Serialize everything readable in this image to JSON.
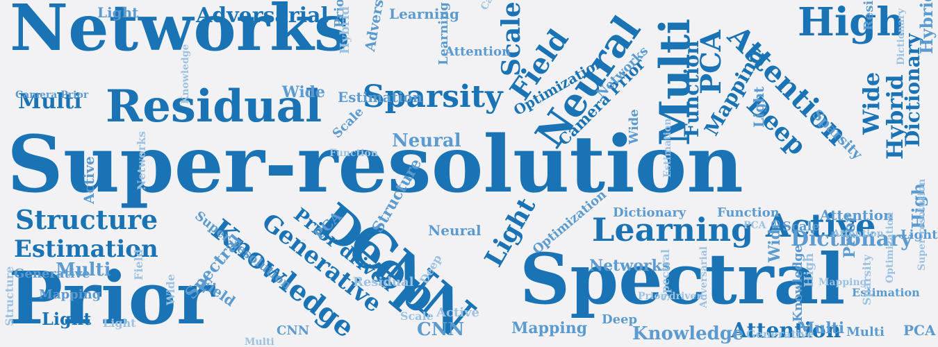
{
  "colors": {
    "background": "#f2f2f5",
    "primary": "#1a73b5",
    "secondary": "#5b9bd0",
    "pale": "#9cc2e2"
  },
  "words": [
    {
      "text": "Networks",
      "tone": "primary"
    },
    {
      "text": "Super-resolution",
      "tone": "primary"
    },
    {
      "text": "Spectral",
      "tone": "primary"
    },
    {
      "text": "Prior",
      "tone": "primary"
    },
    {
      "text": "Residual",
      "tone": "primary"
    },
    {
      "text": "High",
      "tone": "primary"
    },
    {
      "text": "CNN",
      "tone": "primary"
    },
    {
      "text": "Deep",
      "tone": "primary"
    },
    {
      "text": "Neural",
      "tone": "primary"
    },
    {
      "text": "Multi",
      "tone": "primary"
    },
    {
      "text": "Sparsity",
      "tone": "primary"
    },
    {
      "text": "Learning",
      "tone": "primary"
    },
    {
      "text": "Active",
      "tone": "primary"
    },
    {
      "text": "Knowledge",
      "tone": "primary"
    },
    {
      "text": "Generative",
      "tone": "primary"
    },
    {
      "text": "Structure",
      "tone": "primary"
    },
    {
      "text": "Estimation",
      "tone": "primary"
    },
    {
      "text": "Adversarial",
      "tone": "primary"
    },
    {
      "text": "Attention",
      "tone": "primary"
    },
    {
      "text": "Field",
      "tone": "primary"
    },
    {
      "text": "PCA",
      "tone": "primary"
    },
    {
      "text": "Scale",
      "tone": "primary"
    },
    {
      "text": "Light",
      "tone": "primary"
    },
    {
      "text": "Dictionary",
      "tone": "primary"
    },
    {
      "text": "Wide",
      "tone": "primary"
    },
    {
      "text": "Multi",
      "tone": "primary"
    },
    {
      "text": "Hybrid",
      "tone": "primary"
    },
    {
      "text": "Attention",
      "tone": "primary"
    },
    {
      "text": "Function",
      "tone": "primary"
    },
    {
      "text": "Mapping",
      "tone": "primary"
    },
    {
      "text": "Prior driven",
      "tone": "primary"
    },
    {
      "text": "Light",
      "tone": "primary"
    },
    {
      "text": "Deep",
      "tone": "primary"
    },
    {
      "text": "Optimization",
      "tone": "primary"
    },
    {
      "text": "Camera Prior",
      "tone": "primary"
    },
    {
      "text": "Light",
      "tone": "secondary"
    },
    {
      "text": "Adversarial",
      "tone": "secondary"
    },
    {
      "text": "Learning",
      "tone": "secondary"
    },
    {
      "text": "Networks",
      "tone": "secondary"
    },
    {
      "text": "Wide",
      "tone": "secondary"
    },
    {
      "text": "Estimation",
      "tone": "secondary"
    },
    {
      "text": "Neural",
      "tone": "secondary"
    },
    {
      "text": "Multi",
      "tone": "secondary"
    },
    {
      "text": "Camera Prior",
      "tone": "secondary"
    },
    {
      "text": "Knowledge",
      "tone": "secondary"
    },
    {
      "text": "Dictionary",
      "tone": "secondary"
    },
    {
      "text": "Networks",
      "tone": "secondary"
    },
    {
      "text": "Attention",
      "tone": "secondary"
    },
    {
      "text": "CNN",
      "tone": "secondary"
    },
    {
      "text": "Multi",
      "tone": "secondary"
    },
    {
      "text": "Generative",
      "tone": "secondary"
    },
    {
      "text": "Mapping",
      "tone": "secondary"
    },
    {
      "text": "Light",
      "tone": "secondary"
    },
    {
      "text": "Deep",
      "tone": "secondary"
    },
    {
      "text": "Knowledge",
      "tone": "secondary"
    },
    {
      "text": "Wide",
      "tone": "secondary"
    },
    {
      "text": "Function",
      "tone": "secondary"
    },
    {
      "text": "Scale",
      "tone": "secondary"
    },
    {
      "text": "Neural",
      "tone": "secondary"
    },
    {
      "text": "Dictionary",
      "tone": "secondary"
    },
    {
      "text": "Prior",
      "tone": "secondary"
    },
    {
      "text": "PCA",
      "tone": "secondary"
    },
    {
      "text": "High",
      "tone": "secondary"
    },
    {
      "text": "Super-resolution",
      "tone": "secondary"
    },
    {
      "text": "Light",
      "tone": "secondary"
    },
    {
      "text": "Prior driven",
      "tone": "secondary"
    },
    {
      "text": "Optimization",
      "tone": "secondary"
    },
    {
      "text": "Sparsity",
      "tone": "secondary"
    },
    {
      "text": "Residual",
      "tone": "secondary"
    },
    {
      "text": "Structure",
      "tone": "secondary"
    },
    {
      "text": "CNN",
      "tone": "secondary"
    },
    {
      "text": "Hybrid",
      "tone": "secondary"
    },
    {
      "text": "Spectral",
      "tone": "secondary"
    },
    {
      "text": "Active",
      "tone": "secondary"
    },
    {
      "text": "Field",
      "tone": "secondary"
    },
    {
      "text": "Mapping",
      "tone": "secondary"
    },
    {
      "text": "Estimation",
      "tone": "secondary"
    },
    {
      "text": "Learning",
      "tone": "secondary"
    },
    {
      "text": "Scale",
      "tone": "secondary"
    },
    {
      "text": "PCA",
      "tone": "secondary"
    },
    {
      "text": "Wide",
      "tone": "secondary"
    },
    {
      "text": "Multi",
      "tone": "secondary"
    },
    {
      "text": "Attention",
      "tone": "secondary"
    },
    {
      "text": "Optimization",
      "tone": "pale"
    },
    {
      "text": "Networks",
      "tone": "pale"
    },
    {
      "text": "Dictionary",
      "tone": "pale"
    },
    {
      "text": "Hybrid",
      "tone": "pale"
    },
    {
      "text": "Sparsity",
      "tone": "pale"
    },
    {
      "text": "Function",
      "tone": "pale"
    },
    {
      "text": "Super-resolution",
      "tone": "pale"
    },
    {
      "text": "Adversarial",
      "tone": "pale"
    },
    {
      "text": "Camera Prior",
      "tone": "pale"
    },
    {
      "text": "Knowledge",
      "tone": "pale"
    },
    {
      "text": "Structure",
      "tone": "pale"
    },
    {
      "text": "Residual",
      "tone": "pale"
    },
    {
      "text": "Generative",
      "tone": "pale"
    },
    {
      "text": "Prior driven",
      "tone": "pale"
    },
    {
      "text": "Estimation",
      "tone": "pale"
    },
    {
      "text": "Scale",
      "tone": "pale"
    },
    {
      "text": "Active",
      "tone": "pale"
    },
    {
      "text": "Deep",
      "tone": "pale"
    },
    {
      "text": "Spectral",
      "tone": "pale"
    },
    {
      "text": "Mapping",
      "tone": "pale"
    },
    {
      "text": "High",
      "tone": "pale"
    },
    {
      "text": "Wide",
      "tone": "pale"
    },
    {
      "text": "Field",
      "tone": "pale"
    },
    {
      "text": "PCA",
      "tone": "pale"
    },
    {
      "text": "Light",
      "tone": "pale"
    },
    {
      "text": "Multi",
      "tone": "pale"
    },
    {
      "text": "Attention",
      "tone": "pale"
    }
  ]
}
